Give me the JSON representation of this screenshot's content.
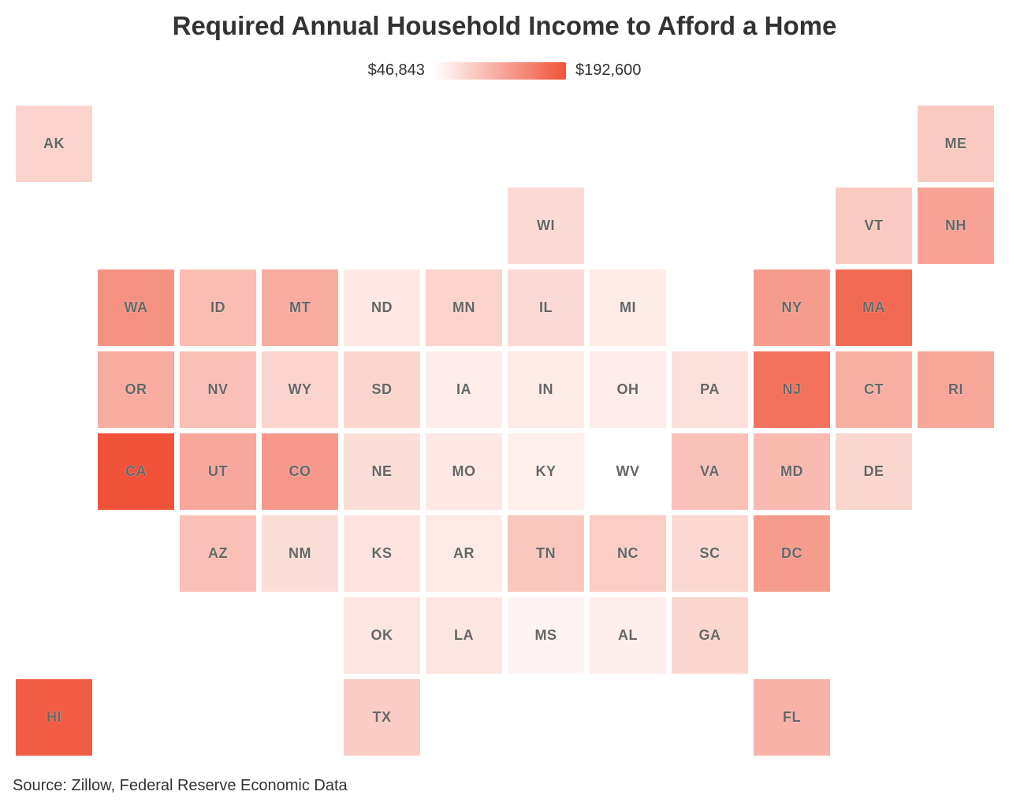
{
  "title": "Required Annual Household Income to Afford a Home",
  "legend": {
    "min_label": "$46,843",
    "max_label": "$192,600",
    "min_value": 46843,
    "max_value": 192600,
    "color_min": "#ffffff",
    "color_max": "#f0533a"
  },
  "source": "Source: Zillow, Federal Reserve Economic Data",
  "chart_data": {
    "type": "heatmap",
    "metric": "Required annual household income (USD)",
    "states": [
      {
        "abbr": "AK",
        "col": 0,
        "row": 0,
        "value": 84000
      },
      {
        "abbr": "ME",
        "col": 11,
        "row": 0,
        "value": 92000
      },
      {
        "abbr": "WI",
        "col": 6,
        "row": 1,
        "value": 77000
      },
      {
        "abbr": "VT",
        "col": 10,
        "row": 1,
        "value": 93000
      },
      {
        "abbr": "NH",
        "col": 11,
        "row": 1,
        "value": 126000
      },
      {
        "abbr": "WA",
        "col": 1,
        "row": 2,
        "value": 140000
      },
      {
        "abbr": "ID",
        "col": 2,
        "row": 2,
        "value": 103000
      },
      {
        "abbr": "MT",
        "col": 3,
        "row": 2,
        "value": 117000
      },
      {
        "abbr": "ND",
        "col": 4,
        "row": 2,
        "value": 66000
      },
      {
        "abbr": "MN",
        "col": 5,
        "row": 2,
        "value": 84000
      },
      {
        "abbr": "IL",
        "col": 6,
        "row": 2,
        "value": 78000
      },
      {
        "abbr": "MI",
        "col": 7,
        "row": 2,
        "value": 64000
      },
      {
        "abbr": "NY",
        "col": 9,
        "row": 2,
        "value": 131000
      },
      {
        "abbr": "MA",
        "col": 10,
        "row": 2,
        "value": 173000
      },
      {
        "abbr": "OR",
        "col": 1,
        "row": 3,
        "value": 118000
      },
      {
        "abbr": "NV",
        "col": 2,
        "row": 3,
        "value": 100000
      },
      {
        "abbr": "WY",
        "col": 3,
        "row": 3,
        "value": 83000
      },
      {
        "abbr": "SD",
        "col": 4,
        "row": 3,
        "value": 82000
      },
      {
        "abbr": "IA",
        "col": 5,
        "row": 3,
        "value": 63000
      },
      {
        "abbr": "IN",
        "col": 6,
        "row": 3,
        "value": 64000
      },
      {
        "abbr": "OH",
        "col": 7,
        "row": 3,
        "value": 63000
      },
      {
        "abbr": "PA",
        "col": 8,
        "row": 3,
        "value": 73000
      },
      {
        "abbr": "NJ",
        "col": 9,
        "row": 3,
        "value": 166000
      },
      {
        "abbr": "CT",
        "col": 10,
        "row": 3,
        "value": 115000
      },
      {
        "abbr": "RI",
        "col": 11,
        "row": 3,
        "value": 122000
      },
      {
        "abbr": "CA",
        "col": 1,
        "row": 4,
        "value": 192600
      },
      {
        "abbr": "UT",
        "col": 2,
        "row": 4,
        "value": 121000
      },
      {
        "abbr": "CO",
        "col": 3,
        "row": 4,
        "value": 134000
      },
      {
        "abbr": "NE",
        "col": 4,
        "row": 4,
        "value": 75000
      },
      {
        "abbr": "MO",
        "col": 5,
        "row": 4,
        "value": 66000
      },
      {
        "abbr": "KY",
        "col": 6,
        "row": 4,
        "value": 60000
      },
      {
        "abbr": "WV",
        "col": 7,
        "row": 4,
        "value": 46843
      },
      {
        "abbr": "VA",
        "col": 8,
        "row": 4,
        "value": 99000
      },
      {
        "abbr": "MD",
        "col": 9,
        "row": 4,
        "value": 105000
      },
      {
        "abbr": "DE",
        "col": 10,
        "row": 4,
        "value": 82000
      },
      {
        "abbr": "AZ",
        "col": 2,
        "row": 5,
        "value": 100000
      },
      {
        "abbr": "NM",
        "col": 3,
        "row": 5,
        "value": 75000
      },
      {
        "abbr": "KS",
        "col": 4,
        "row": 5,
        "value": 70000
      },
      {
        "abbr": "AR",
        "col": 5,
        "row": 5,
        "value": 65000
      },
      {
        "abbr": "TN",
        "col": 6,
        "row": 5,
        "value": 94000
      },
      {
        "abbr": "NC",
        "col": 7,
        "row": 5,
        "value": 89000
      },
      {
        "abbr": "SC",
        "col": 8,
        "row": 5,
        "value": 80000
      },
      {
        "abbr": "DC",
        "col": 9,
        "row": 5,
        "value": 131000
      },
      {
        "abbr": "OK",
        "col": 4,
        "row": 6,
        "value": 68000
      },
      {
        "abbr": "LA",
        "col": 5,
        "row": 6,
        "value": 69000
      },
      {
        "abbr": "MS",
        "col": 6,
        "row": 6,
        "value": 56000
      },
      {
        "abbr": "AL",
        "col": 7,
        "row": 6,
        "value": 62000
      },
      {
        "abbr": "GA",
        "col": 8,
        "row": 6,
        "value": 82000
      },
      {
        "abbr": "HI",
        "col": 0,
        "row": 7,
        "value": 185000
      },
      {
        "abbr": "TX",
        "col": 4,
        "row": 7,
        "value": 90000
      },
      {
        "abbr": "FL",
        "col": 9,
        "row": 7,
        "value": 112000
      }
    ]
  }
}
